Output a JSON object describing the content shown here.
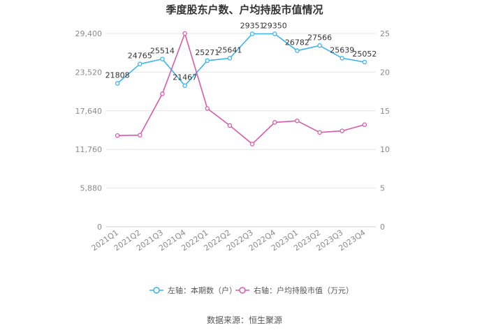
{
  "chart_data": {
    "type": "line",
    "title": "季度股东户数、户均持股市值情况",
    "categories": [
      "2021Q1",
      "2021Q2",
      "2021Q3",
      "2021Q4",
      "2022Q1",
      "2022Q2",
      "2022Q3",
      "2022Q4",
      "2023Q1",
      "2023Q2",
      "2023Q3",
      "2023Q4"
    ],
    "left_axis": {
      "ticks": [
        "0",
        "5,880",
        "11,760",
        "17,640",
        "23,520",
        "29,400"
      ],
      "ylim": [
        0,
        29400
      ]
    },
    "right_axis": {
      "ticks": [
        "0",
        "5",
        "10",
        "15",
        "20",
        "25"
      ],
      "ylim": [
        0,
        25
      ]
    },
    "series": [
      {
        "name": "左轴：本期数（户）",
        "axis": "left",
        "color": "#3bb4ea",
        "values": [
          21808,
          24765,
          25514,
          21467,
          25271,
          25641,
          29351,
          29350,
          26782,
          27566,
          25639,
          25052
        ],
        "labels": [
          "21808",
          "24765",
          "25514",
          "21467",
          "25271",
          "25641",
          "29351",
          "29350",
          "26782",
          "27566",
          "25639",
          "25052"
        ]
      },
      {
        "name": "右轴：户均持股市值（万元）",
        "axis": "right",
        "color": "#d95aa8",
        "values": [
          11.8,
          11.85,
          17.2,
          25.0,
          15.3,
          13.1,
          10.7,
          13.5,
          13.7,
          12.2,
          12.4,
          13.2
        ]
      }
    ],
    "grid": true,
    "legend_position": "bottom"
  },
  "source": "数据来源：恒生聚源"
}
